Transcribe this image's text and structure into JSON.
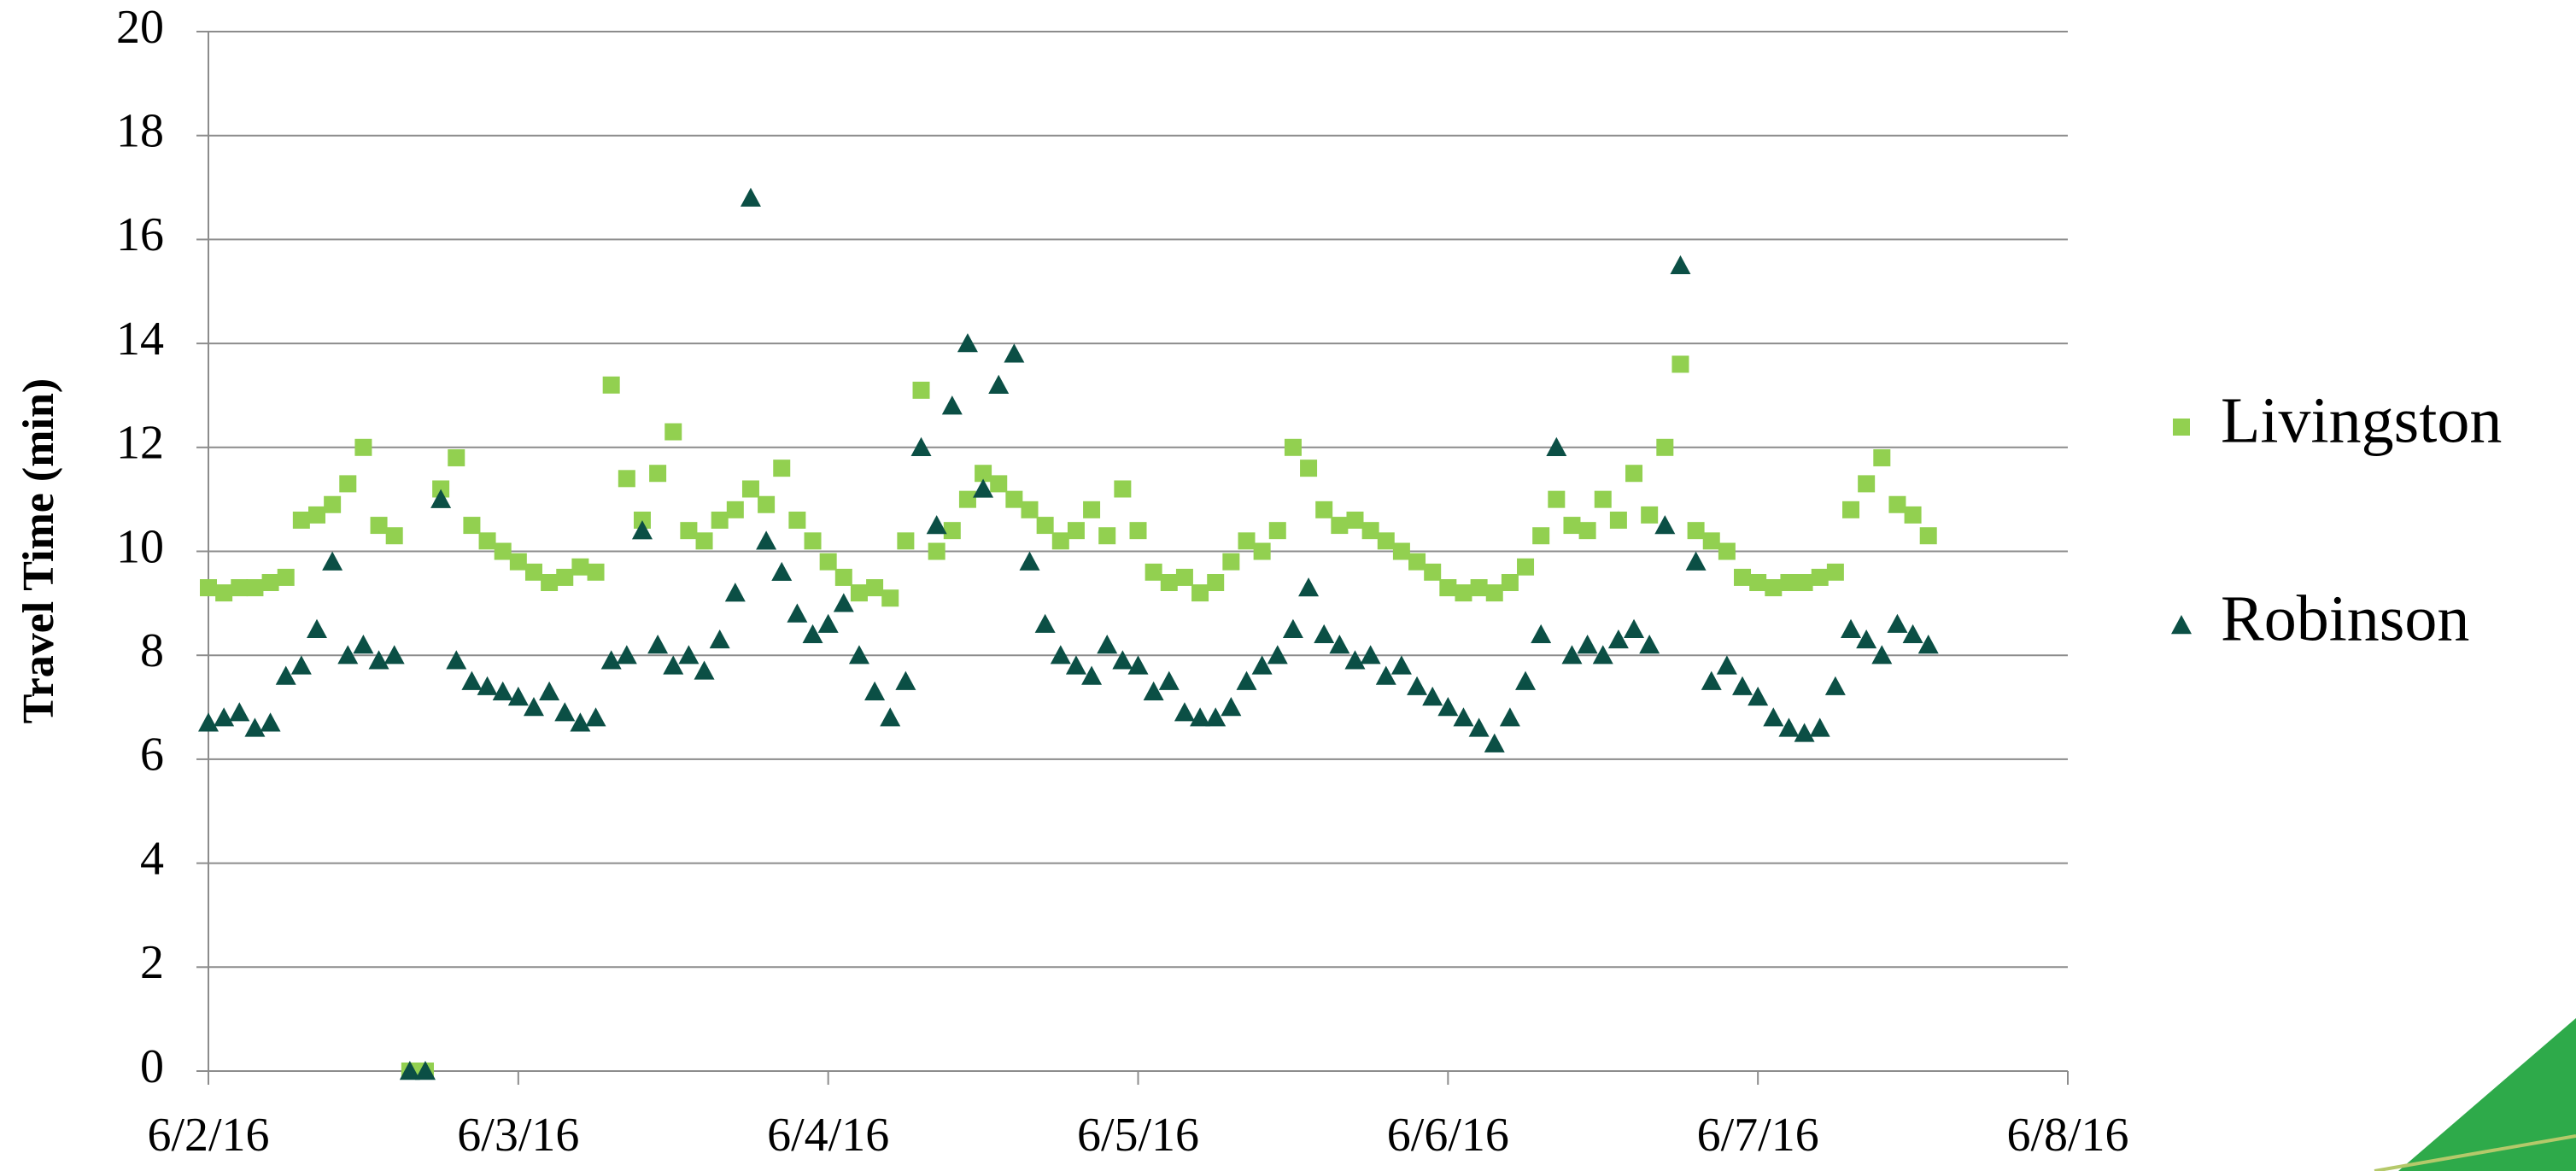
{
  "chart_data": {
    "type": "scatter",
    "y_label": "Travel Time (min)",
    "x": [
      42523,
      42523.05,
      42523.1,
      42523.15,
      42523.2,
      42523.25,
      42523.3,
      42523.35,
      42523.4,
      42523.45,
      42523.5,
      42523.55,
      42523.6,
      42523.65,
      42523.7,
      42523.75,
      42523.8,
      42523.85,
      42523.9,
      42523.95,
      42524,
      42524.05,
      42524.1,
      42524.15,
      42524.2,
      42524.25,
      42524.3,
      42524.35,
      42524.4,
      42524.45,
      42524.5,
      42524.55,
      42524.6,
      42524.65,
      42524.7,
      42524.75,
      42524.8,
      42524.85,
      42524.9,
      42524.95,
      42525,
      42525.05,
      42525.1,
      42525.15,
      42525.2,
      42525.25,
      42525.3,
      42525.35,
      42525.4,
      42525.45,
      42525.5,
      42525.55,
      42525.6,
      42525.65,
      42525.7,
      42525.75,
      42525.8,
      42525.85,
      42525.9,
      42525.95,
      42526,
      42526.05,
      42526.1,
      42526.15,
      42526.2,
      42526.25,
      42526.3,
      42526.35,
      42526.4,
      42526.45,
      42526.5,
      42526.55,
      42526.6,
      42526.65,
      42526.7,
      42526.75,
      42526.8,
      42526.85,
      42526.9,
      42526.95,
      42527,
      42527.05,
      42527.1,
      42527.15,
      42527.2,
      42527.25,
      42527.3,
      42527.35,
      42527.4,
      42527.45,
      42527.5,
      42527.55,
      42527.6,
      42527.65,
      42527.7,
      42527.75,
      42527.8,
      42527.85,
      42527.9,
      42527.95,
      42528,
      42528.05,
      42528.1,
      42528.15,
      42528.2,
      42528.25,
      42528.3,
      42528.35,
      42528.4,
      42528.45,
      42528.5,
      42528.55
    ],
    "series": [
      {
        "name": "Livingston",
        "color": "#92d050",
        "marker": "square",
        "values": [
          9.3,
          9.2,
          9.3,
          9.3,
          9.4,
          9.5,
          10.6,
          10.7,
          10.9,
          11.3,
          12.0,
          10.5,
          10.3,
          0,
          0,
          11.2,
          11.8,
          10.5,
          10.2,
          10.0,
          9.8,
          9.6,
          9.4,
          9.5,
          9.7,
          9.6,
          13.2,
          11.4,
          10.6,
          11.5,
          12.3,
          10.4,
          10.2,
          10.6,
          10.8,
          11.2,
          10.9,
          11.6,
          10.6,
          10.2,
          9.8,
          9.5,
          9.2,
          9.3,
          9.1,
          10.2,
          13.1,
          10.0,
          10.4,
          11.0,
          11.5,
          11.3,
          11.0,
          10.8,
          10.5,
          10.2,
          10.4,
          10.8,
          10.3,
          11.2,
          10.4,
          9.6,
          9.4,
          9.5,
          9.2,
          9.4,
          9.8,
          10.2,
          10.0,
          10.4,
          12.0,
          11.6,
          10.8,
          10.5,
          10.6,
          10.4,
          10.2,
          10.0,
          9.8,
          9.6,
          9.3,
          9.2,
          9.3,
          9.2,
          9.4,
          9.7,
          10.3,
          11.0,
          10.5,
          10.4,
          11.0,
          10.6,
          11.5,
          10.7,
          12.0,
          13.6,
          10.4,
          10.2,
          10.0,
          9.5,
          9.4,
          9.3,
          9.4,
          9.4,
          9.5,
          9.6,
          10.8,
          11.3,
          11.8,
          10.9,
          10.7,
          10.3
        ]
      },
      {
        "name": "Robinson",
        "color": "#0b4f45",
        "marker": "triangle",
        "values": [
          6.7,
          6.8,
          6.9,
          6.6,
          6.7,
          7.6,
          7.8,
          8.5,
          9.8,
          8.0,
          8.2,
          7.9,
          8.0,
          0,
          0,
          11.0,
          7.9,
          7.5,
          7.4,
          7.3,
          7.2,
          7.0,
          7.3,
          6.9,
          6.7,
          6.8,
          7.9,
          8.0,
          10.4,
          8.2,
          7.8,
          8.0,
          7.7,
          8.3,
          9.2,
          16.8,
          10.2,
          9.6,
          8.8,
          8.4,
          8.6,
          9.0,
          8.0,
          7.3,
          6.8,
          7.5,
          12.0,
          10.5,
          12.8,
          14.0,
          11.2,
          13.2,
          13.8,
          9.8,
          8.6,
          8.0,
          7.8,
          7.6,
          8.2,
          7.9,
          7.8,
          7.3,
          7.5,
          6.9,
          6.8,
          6.8,
          7.0,
          7.5,
          7.8,
          8.0,
          8.5,
          9.3,
          8.4,
          8.2,
          7.9,
          8.0,
          7.6,
          7.8,
          7.4,
          7.2,
          7.0,
          6.8,
          6.6,
          6.3,
          6.8,
          7.5,
          8.4,
          12.0,
          8.0,
          8.2,
          8.0,
          8.3,
          8.5,
          8.2,
          10.5,
          15.5,
          9.8,
          7.5,
          7.8,
          7.4,
          7.2,
          6.8,
          6.6,
          6.5,
          6.6,
          7.4,
          8.5,
          8.3,
          8.0,
          8.6,
          8.4,
          8.2
        ]
      }
    ],
    "xlim": [
      42523,
      42529
    ],
    "xticks": [
      {
        "value": 42523,
        "label": "6/2/16"
      },
      {
        "value": 42524,
        "label": "6/3/16"
      },
      {
        "value": 42525,
        "label": "6/4/16"
      },
      {
        "value": 42526,
        "label": "6/5/16"
      },
      {
        "value": 42527,
        "label": "6/6/16"
      },
      {
        "value": 42528,
        "label": "6/7/16"
      },
      {
        "value": 42529,
        "label": "6/8/16"
      }
    ],
    "ylim": [
      0,
      20
    ],
    "yticks": [
      0,
      2,
      4,
      6,
      8,
      10,
      12,
      14,
      16,
      18,
      20
    ],
    "grid": true,
    "legend": "right"
  }
}
